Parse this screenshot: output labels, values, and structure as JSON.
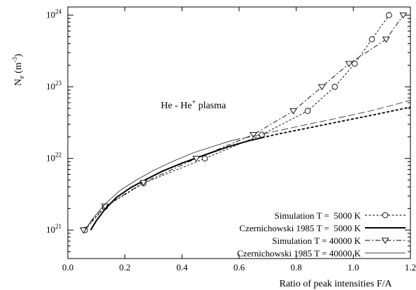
{
  "chart_data": {
    "type": "line",
    "title": "",
    "annotation": {
      "text": "He - He",
      "superscript": "+",
      "suffix": " plasma",
      "x": 0.44,
      "y": 5.6e+22
    },
    "xlabel": "Ratio of peak intensities F/A",
    "ylabel": {
      "text": "N",
      "subscript": "e",
      "unit_open": " (m",
      "unit_sup": "-3",
      "unit_close": ")"
    },
    "xlim": [
      0.0,
      1.2
    ],
    "ylim": [
      4e+20,
      1.3e+24
    ],
    "yscale": "log",
    "grid": false,
    "legend_position": "bottom-right",
    "x_ticks": [
      {
        "value": 0.0,
        "label": "0.0"
      },
      {
        "value": 0.2,
        "label": "0.2"
      },
      {
        "value": 0.4,
        "label": "0.4"
      },
      {
        "value": 0.6,
        "label": "0.6"
      },
      {
        "value": 0.8,
        "label": "0.8"
      },
      {
        "value": 1.0,
        "label": "1.0"
      },
      {
        "value": 1.2,
        "label": "1.2"
      }
    ],
    "y_ticks": [
      {
        "value": 1e+21,
        "base": "10",
        "exp": "21"
      },
      {
        "value": 1e+22,
        "base": "10",
        "exp": "22"
      },
      {
        "value": 1e+23,
        "base": "10",
        "exp": "23"
      },
      {
        "value": 1e+24,
        "base": "10",
        "exp": "24"
      }
    ],
    "series": [
      {
        "name": "Simulation T =  5000 K",
        "style": "sim5000",
        "color": "#000000",
        "marker": "circle",
        "points": [
          [
            0.06,
            1e+21
          ],
          [
            0.13,
            2.1e+21
          ],
          [
            0.265,
            4.5e+21
          ],
          [
            0.48,
            1e+22
          ],
          [
            0.68,
            2.15e+22
          ],
          [
            0.84,
            4.6e+22
          ],
          [
            0.935,
            1e+23
          ],
          [
            1.005,
            2.1e+23
          ],
          [
            1.065,
            4.6e+23
          ],
          [
            1.125,
            1e+24
          ]
        ]
      },
      {
        "name": "Czernichowski 1985 T =  5000 K",
        "style": "cz5000",
        "color": "#000000",
        "marker": "none",
        "points": [
          [
            0.08,
            1e+21
          ],
          [
            0.1,
            1.35e+21
          ],
          [
            0.13,
            1.95e+21
          ],
          [
            0.17,
            2.85e+21
          ],
          [
            0.22,
            3.9e+21
          ],
          [
            0.27,
            5e+21
          ],
          [
            0.33,
            6.6e+21
          ],
          [
            0.4,
            8.6e+21
          ],
          [
            0.48,
            1.12e+22
          ],
          [
            0.56,
            1.45e+22
          ],
          [
            0.63,
            1.75e+22
          ],
          [
            0.68,
            1.95e+22
          ]
        ],
        "extension": [
          [
            0.68,
            1.95e+22
          ],
          [
            0.75,
            2.25e+22
          ],
          [
            0.85,
            2.7e+22
          ],
          [
            0.95,
            3.25e+22
          ],
          [
            1.05,
            3.9e+22
          ],
          [
            1.12,
            4.45e+22
          ],
          [
            1.2,
            5.2e+22
          ]
        ]
      },
      {
        "name": "Simulation T = 40000 K",
        "style": "sim40000",
        "color": "#000000",
        "marker": "triangle-down",
        "points": [
          [
            0.055,
            1e+21
          ],
          [
            0.13,
            2.15e+21
          ],
          [
            0.265,
            4.6e+21
          ],
          [
            0.45,
            1e+22
          ],
          [
            0.65,
            2.15e+22
          ],
          [
            0.79,
            4.6e+22
          ],
          [
            0.89,
            1e+23
          ],
          [
            0.985,
            2.1e+23
          ],
          [
            1.115,
            4.6e+23
          ],
          [
            1.175,
            1e+24
          ]
        ]
      },
      {
        "name": "Czernichowski 1985 T = 40000 K",
        "style": "cz40000",
        "color": "#000000",
        "marker": "none",
        "points": [
          [
            0.06,
            1e+21
          ],
          [
            0.09,
            1.5e+21
          ],
          [
            0.13,
            2.3e+21
          ],
          [
            0.18,
            3.5e+21
          ],
          [
            0.24,
            5e+21
          ],
          [
            0.3,
            6.8e+21
          ],
          [
            0.37,
            9.2e+21
          ],
          [
            0.44,
            1.2e+22
          ],
          [
            0.52,
            1.52e+22
          ],
          [
            0.58,
            1.8e+22
          ]
        ],
        "extension": [
          [
            0.58,
            1.8e+22
          ],
          [
            0.65,
            2.05e+22
          ],
          [
            0.75,
            2.5e+22
          ],
          [
            0.85,
            3.05e+22
          ],
          [
            0.95,
            3.7e+22
          ],
          [
            1.05,
            4.5e+22
          ],
          [
            1.15,
            5.7e+22
          ],
          [
            1.2,
            6.5e+22
          ]
        ]
      }
    ]
  }
}
